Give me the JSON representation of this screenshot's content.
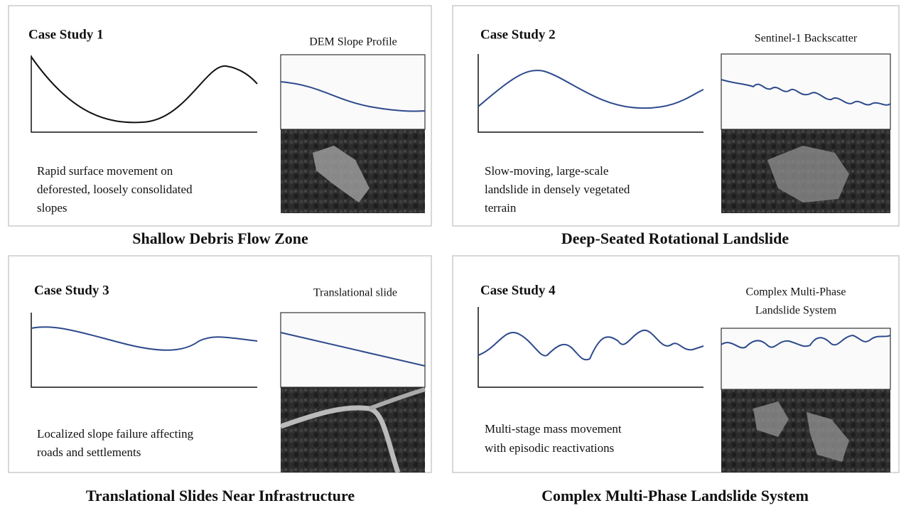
{
  "panels": [
    {
      "title": "Case Study 1",
      "image_title": [
        "DEM Slope Profile"
      ],
      "description": [
        "Rapid surface movement on",
        "deforested, loosely consolidated",
        "slopes"
      ],
      "caption": "Shallow Debris Flow Zone"
    },
    {
      "title": "Case Study 2",
      "image_title": [
        "Sentinel-1 Backscatter"
      ],
      "description": [
        "Slow-moving, large-scale",
        "landslide in densely vegetated",
        "terrain"
      ],
      "caption": "Deep-Seated Rotational Landslide"
    },
    {
      "title": "Case Study 3",
      "image_title": [
        "Translational slide"
      ],
      "description": [
        "Localized slope failure affecting",
        "roads and settlements"
      ],
      "caption": "Translational Slides Near Infrastructure"
    },
    {
      "title": "Case Study 4",
      "image_title": [
        "Complex Multi-Phase",
        "Landslide System"
      ],
      "description": [
        "Multi-stage mass movement",
        "with episodic reactivations"
      ],
      "caption": "Complex Multi-Phase Landslide System"
    }
  ]
}
